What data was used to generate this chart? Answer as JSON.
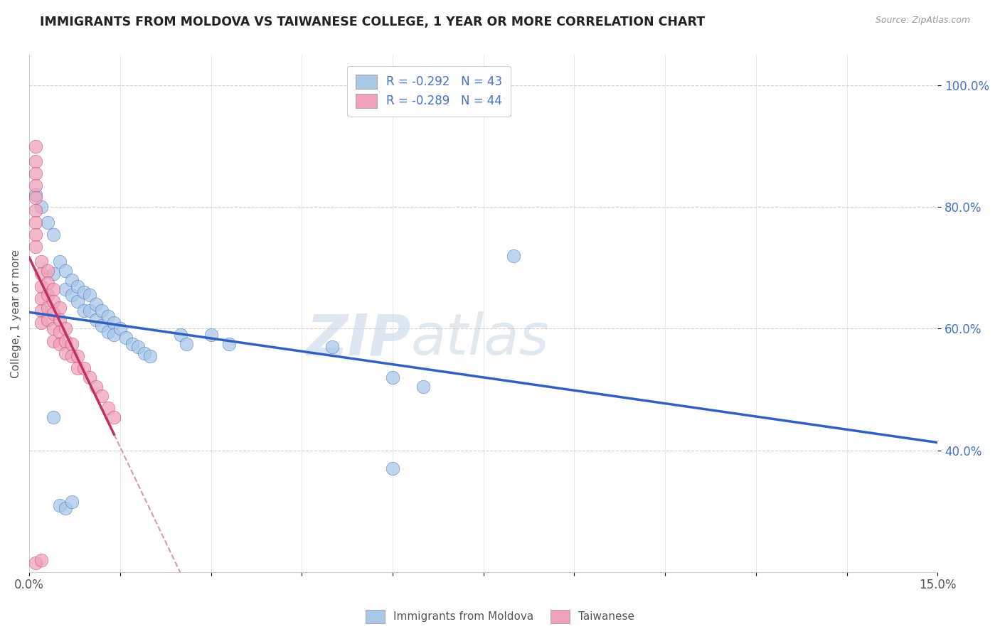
{
  "title": "IMMIGRANTS FROM MOLDOVA VS TAIWANESE COLLEGE, 1 YEAR OR MORE CORRELATION CHART",
  "source": "Source: ZipAtlas.com",
  "ylabel": "College, 1 year or more",
  "xlim": [
    0.0,
    0.15
  ],
  "ylim": [
    0.2,
    1.05
  ],
  "xticks": [
    0.0,
    0.015,
    0.03,
    0.045,
    0.06,
    0.075,
    0.09,
    0.105,
    0.12,
    0.135,
    0.15
  ],
  "xtick_labels": [
    "0.0%",
    "",
    "",
    "",
    "",
    "",
    "",
    "",
    "",
    "",
    "15.0%"
  ],
  "ytick_labels": [
    "40.0%",
    "60.0%",
    "80.0%",
    "100.0%"
  ],
  "yticks": [
    0.4,
    0.6,
    0.8,
    1.0
  ],
  "legend_r1": "R = -0.292   N = 43",
  "legend_r2": "R = -0.289   N = 44",
  "color_moldova": "#a8c8e8",
  "color_taiwanese": "#f0a0b8",
  "trendline_moldova_color": "#3060c0",
  "trendline_taiwanese_color": "#c03060",
  "watermark_zip": "ZIP",
  "watermark_atlas": "atlas",
  "moldova_points": [
    [
      0.001,
      0.82
    ],
    [
      0.002,
      0.8
    ],
    [
      0.003,
      0.775
    ],
    [
      0.004,
      0.755
    ],
    [
      0.004,
      0.69
    ],
    [
      0.005,
      0.71
    ],
    [
      0.006,
      0.695
    ],
    [
      0.006,
      0.665
    ],
    [
      0.007,
      0.68
    ],
    [
      0.007,
      0.655
    ],
    [
      0.008,
      0.67
    ],
    [
      0.008,
      0.645
    ],
    [
      0.009,
      0.66
    ],
    [
      0.009,
      0.63
    ],
    [
      0.01,
      0.655
    ],
    [
      0.01,
      0.63
    ],
    [
      0.011,
      0.64
    ],
    [
      0.011,
      0.615
    ],
    [
      0.012,
      0.63
    ],
    [
      0.012,
      0.605
    ],
    [
      0.013,
      0.62
    ],
    [
      0.013,
      0.595
    ],
    [
      0.014,
      0.61
    ],
    [
      0.014,
      0.59
    ],
    [
      0.015,
      0.6
    ],
    [
      0.016,
      0.585
    ],
    [
      0.017,
      0.575
    ],
    [
      0.018,
      0.57
    ],
    [
      0.019,
      0.56
    ],
    [
      0.02,
      0.555
    ],
    [
      0.025,
      0.59
    ],
    [
      0.026,
      0.575
    ],
    [
      0.03,
      0.59
    ],
    [
      0.033,
      0.575
    ],
    [
      0.05,
      0.57
    ],
    [
      0.06,
      0.52
    ],
    [
      0.065,
      0.505
    ],
    [
      0.08,
      0.72
    ],
    [
      0.005,
      0.31
    ],
    [
      0.006,
      0.305
    ],
    [
      0.004,
      0.455
    ],
    [
      0.007,
      0.315
    ],
    [
      0.06,
      0.37
    ]
  ],
  "taiwanese_points": [
    [
      0.001,
      0.9
    ],
    [
      0.001,
      0.875
    ],
    [
      0.001,
      0.855
    ],
    [
      0.001,
      0.835
    ],
    [
      0.001,
      0.815
    ],
    [
      0.001,
      0.795
    ],
    [
      0.001,
      0.775
    ],
    [
      0.001,
      0.755
    ],
    [
      0.001,
      0.735
    ],
    [
      0.002,
      0.71
    ],
    [
      0.002,
      0.69
    ],
    [
      0.002,
      0.67
    ],
    [
      0.002,
      0.65
    ],
    [
      0.002,
      0.63
    ],
    [
      0.002,
      0.61
    ],
    [
      0.003,
      0.695
    ],
    [
      0.003,
      0.675
    ],
    [
      0.003,
      0.655
    ],
    [
      0.003,
      0.635
    ],
    [
      0.003,
      0.615
    ],
    [
      0.004,
      0.665
    ],
    [
      0.004,
      0.645
    ],
    [
      0.004,
      0.625
    ],
    [
      0.004,
      0.6
    ],
    [
      0.004,
      0.58
    ],
    [
      0.005,
      0.635
    ],
    [
      0.005,
      0.615
    ],
    [
      0.005,
      0.595
    ],
    [
      0.005,
      0.575
    ],
    [
      0.006,
      0.6
    ],
    [
      0.006,
      0.58
    ],
    [
      0.006,
      0.56
    ],
    [
      0.007,
      0.575
    ],
    [
      0.007,
      0.555
    ],
    [
      0.008,
      0.555
    ],
    [
      0.008,
      0.535
    ],
    [
      0.009,
      0.535
    ],
    [
      0.01,
      0.52
    ],
    [
      0.011,
      0.505
    ],
    [
      0.012,
      0.49
    ],
    [
      0.001,
      0.215
    ],
    [
      0.002,
      0.22
    ],
    [
      0.013,
      0.47
    ],
    [
      0.014,
      0.455
    ]
  ]
}
